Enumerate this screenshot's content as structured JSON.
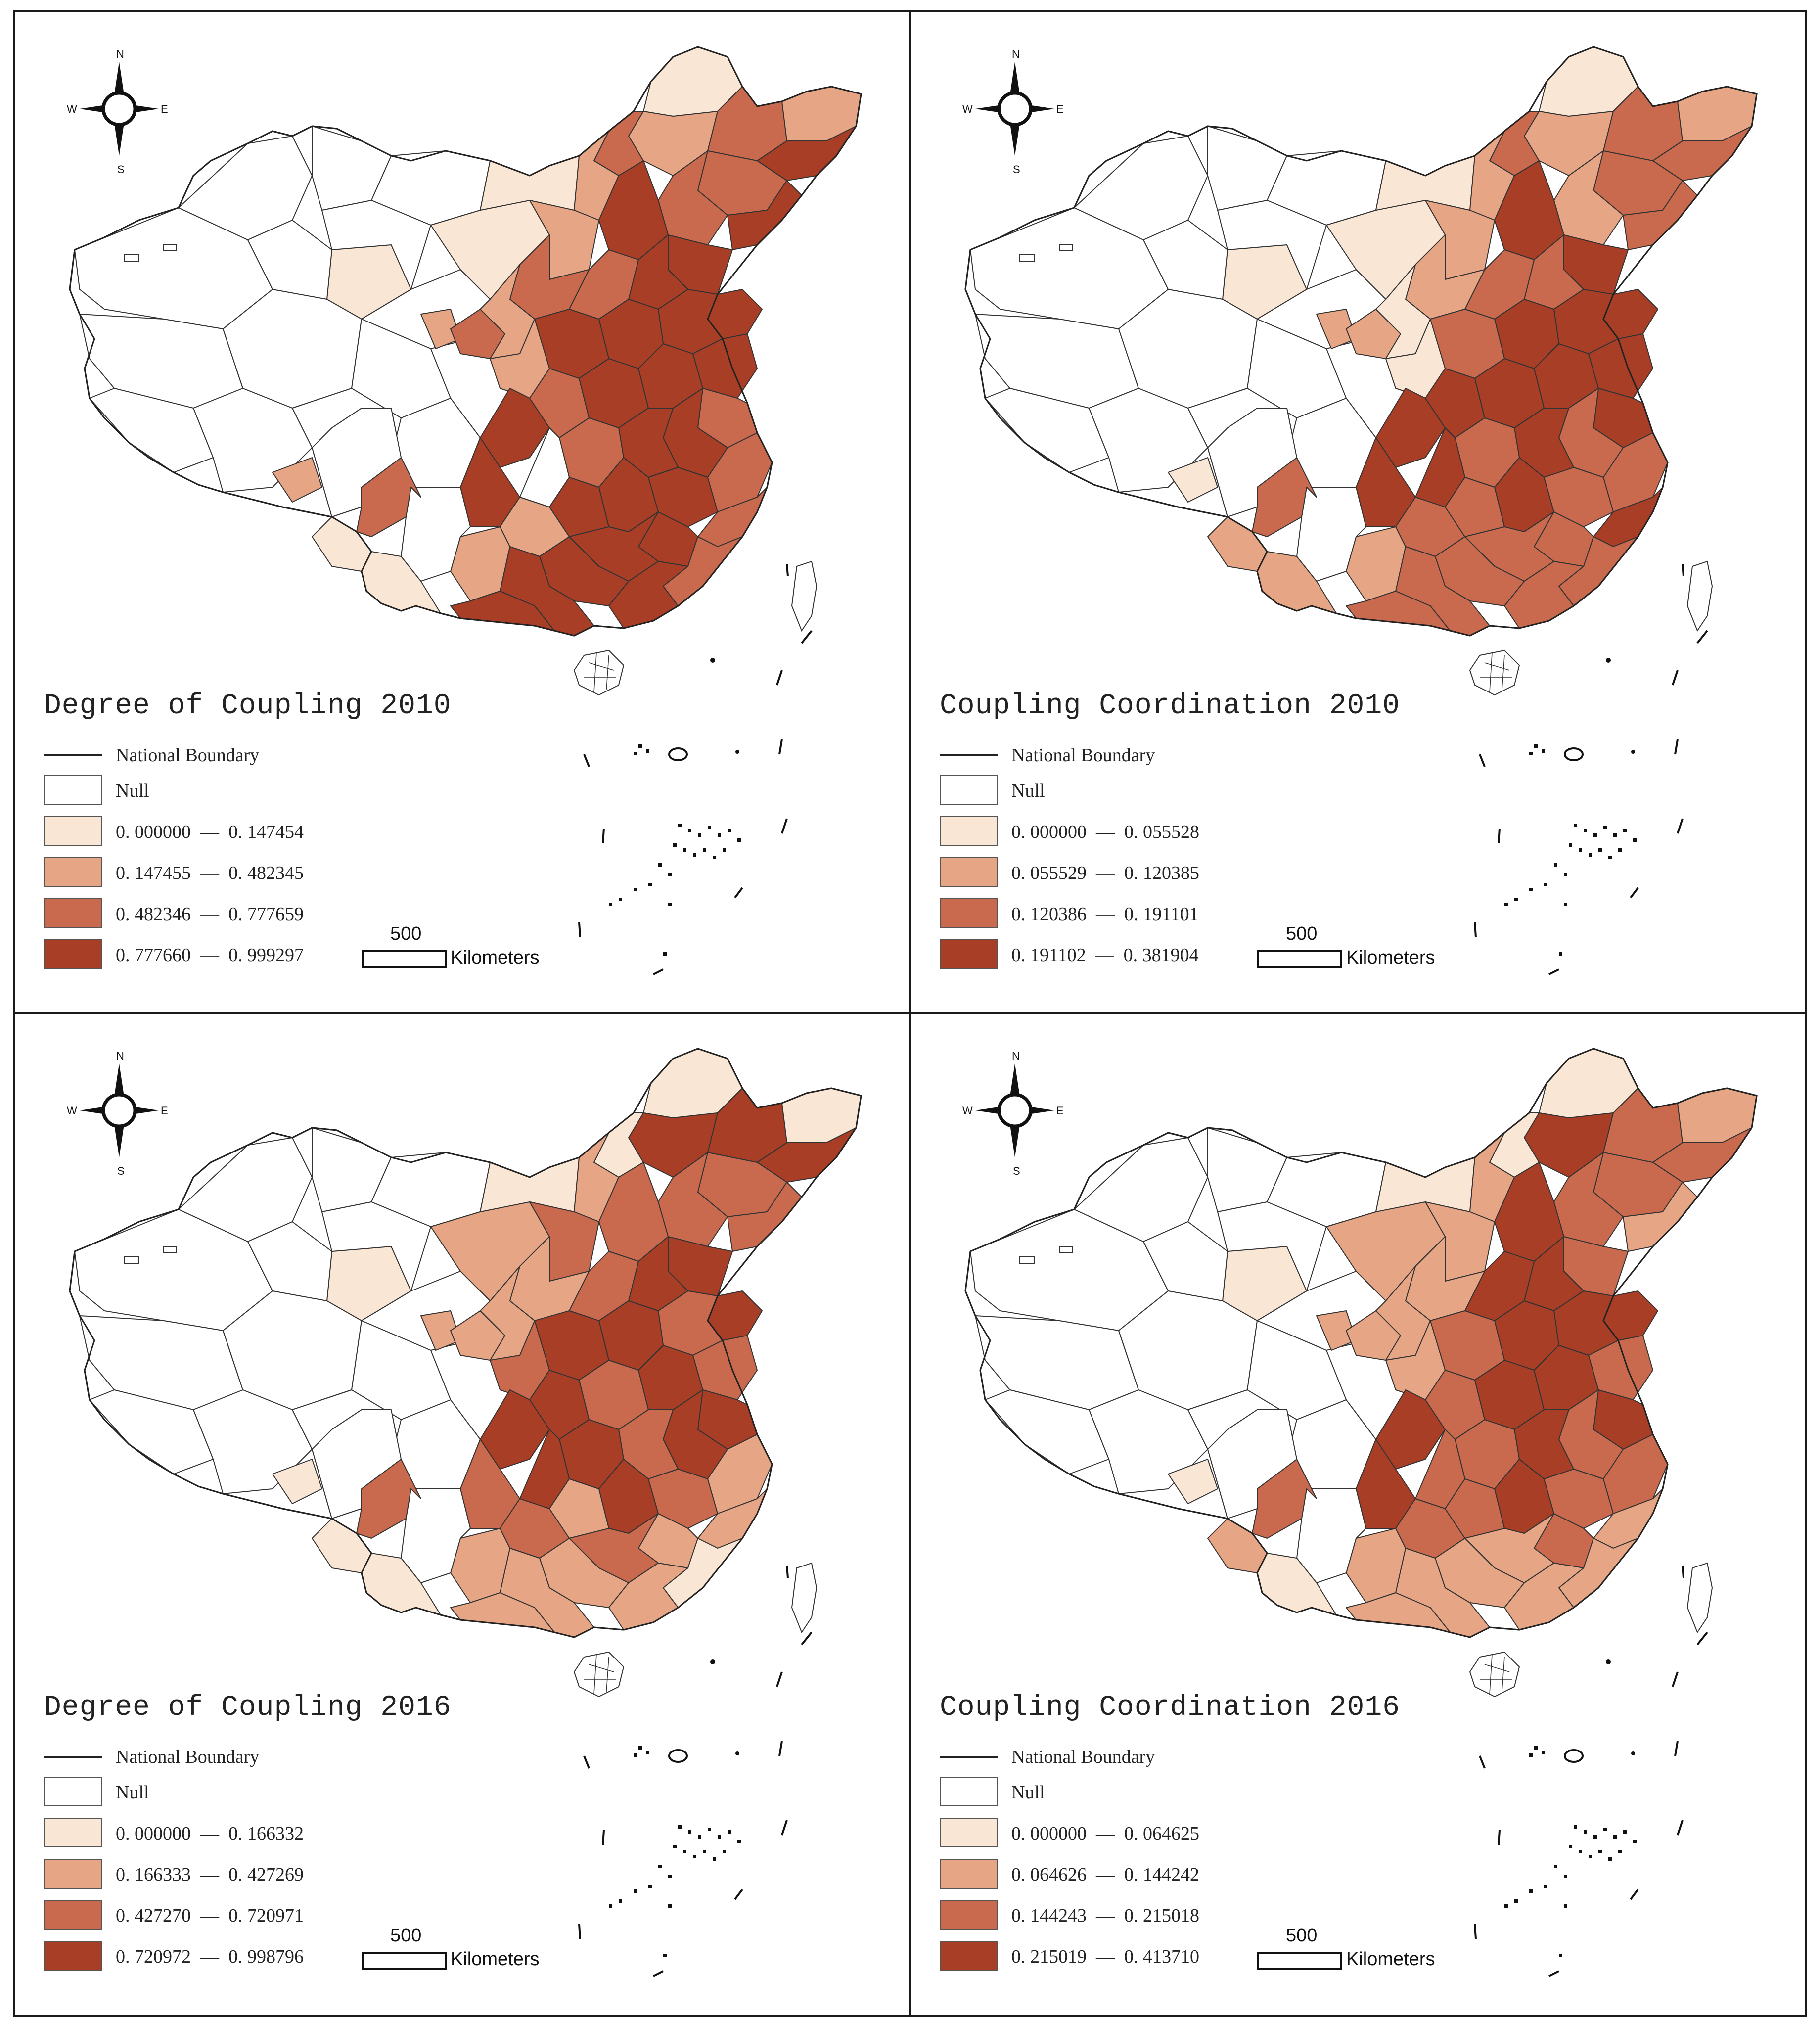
{
  "colors": {
    "null": "#ffffff",
    "class1": "#fae6d4",
    "class2": "#e6a585",
    "class3": "#c96a4e",
    "class4": "#a93e27",
    "boundary": "#222222"
  },
  "compass": {
    "n": "N",
    "s": "S",
    "e": "E",
    "w": "W"
  },
  "scale": {
    "distance": "500",
    "unit": "Kilometers"
  },
  "panels": [
    {
      "title": "Degree of Coupling 2010",
      "legend": {
        "boundary_label": "National Boundary",
        "null_label": "Null",
        "classes": [
          {
            "low": "0. 000000",
            "high": "0. 147454"
          },
          {
            "low": "0. 147455",
            "high": "0. 482345"
          },
          {
            "low": "0. 482346",
            "high": "0. 777659"
          },
          {
            "low": "0. 777660",
            "high": "0. 999297"
          }
        ]
      }
    },
    {
      "title": "Coupling Coordination 2010",
      "legend": {
        "boundary_label": "National Boundary",
        "null_label": "Null",
        "classes": [
          {
            "low": "0. 000000",
            "high": "0. 055528"
          },
          {
            "low": "0. 055529",
            "high": "0. 120385"
          },
          {
            "low": "0. 120386",
            "high": "0. 191101"
          },
          {
            "low": "0. 191102",
            "high": "0. 381904"
          }
        ]
      }
    },
    {
      "title": "Degree of Coupling 2016",
      "legend": {
        "boundary_label": "National Boundary",
        "null_label": "Null",
        "classes": [
          {
            "low": "0. 000000",
            "high": "0. 166332"
          },
          {
            "low": "0. 166333",
            "high": "0. 427269"
          },
          {
            "low": "0. 427270",
            "high": "0. 720971"
          },
          {
            "low": "0. 720972",
            "high": "0. 998796"
          }
        ]
      }
    },
    {
      "title": "Coupling Coordination 2016",
      "legend": {
        "boundary_label": "National Boundary",
        "null_label": "Null",
        "classes": [
          {
            "low": "0. 000000",
            "high": "0. 064625"
          },
          {
            "low": "0. 064626",
            "high": "0. 144242"
          },
          {
            "low": "0. 144243",
            "high": "0. 215018"
          },
          {
            "low": "0. 215019",
            "high": "0. 413710"
          }
        ]
      }
    }
  ]
}
